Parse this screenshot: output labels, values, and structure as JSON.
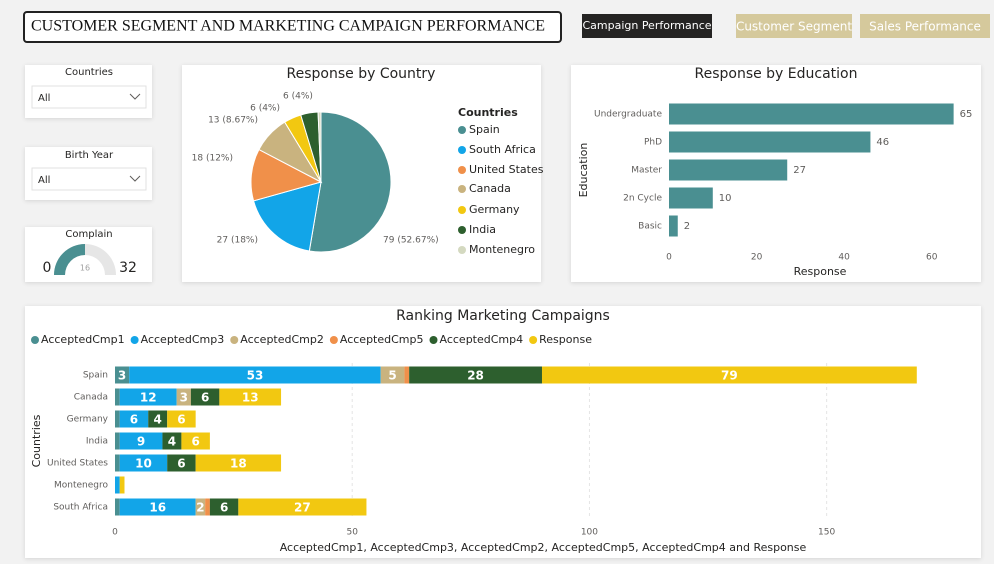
{
  "header": {
    "title": "CUSTOMER SEGMENT AND MARKETING CAMPAIGN PERFORMANCE"
  },
  "tabs": [
    "Campaign Performance",
    "Customer Segment",
    "Sales Performance"
  ],
  "filters": [
    {
      "label": "Countries",
      "value": "All"
    },
    {
      "label": "Birth Year",
      "value": "All"
    }
  ],
  "gauge": {
    "title": "Complain",
    "min": 0,
    "max": 32,
    "value": 16,
    "color": "#4a8f91"
  },
  "chart_data": [
    {
      "type": "pie",
      "title": "Response by Country",
      "legend_title": "Countries",
      "categories": [
        "Spain",
        "South Africa",
        "United States",
        "Canada",
        "Germany",
        "India",
        "Montenegro"
      ],
      "values": [
        79,
        27,
        18,
        13,
        6,
        6,
        1
      ],
      "value_labels": [
        "79 (52.67%)",
        "27 (18%)",
        "18 (12%)",
        "13 (8.67%)",
        "6 (4%)",
        "6 (4%)",
        null
      ],
      "colors": [
        "#4a8f91",
        "#12a5e8",
        "#f0904a",
        "#c9b37f",
        "#f2c811",
        "#2d5f2e",
        "#d4d9c0"
      ]
    },
    {
      "type": "bar",
      "orientation": "horizontal",
      "title": "Response by Education",
      "x_label": "Response",
      "y_label": "Education",
      "categories": [
        "Undergraduate",
        "PhD",
        "Master",
        "2n Cycle",
        "Basic"
      ],
      "values": [
        65,
        46,
        27,
        10,
        2
      ],
      "color": "#4a8f91",
      "xlim": [
        0,
        66
      ],
      "xticks": [
        0,
        20,
        40,
        60
      ]
    },
    {
      "type": "stacked_bar",
      "orientation": "horizontal",
      "title": "Ranking Marketing Campaigns",
      "x_label": "AcceptedCmp1, AcceptedCmp3, AcceptedCmp2, AcceptedCmp5, AcceptedCmp4 and Response",
      "y_label": "Countries",
      "categories": [
        "Spain",
        "Canada",
        "Germany",
        "India",
        "United States",
        "Montenegro",
        "South Africa"
      ],
      "series": [
        {
          "name": "AcceptedCmp1",
          "color": "#4a8f91",
          "values": [
            3,
            1,
            1,
            1,
            1,
            0,
            1
          ]
        },
        {
          "name": "AcceptedCmp3",
          "color": "#12a5e8",
          "values": [
            53,
            12,
            6,
            9,
            10,
            1,
            16
          ]
        },
        {
          "name": "AcceptedCmp2",
          "color": "#c9b37f",
          "values": [
            5,
            3,
            0,
            0,
            0,
            0,
            2
          ]
        },
        {
          "name": "AcceptedCmp5",
          "color": "#f0904a",
          "values": [
            1,
            0,
            0,
            0,
            0,
            0,
            1
          ]
        },
        {
          "name": "AcceptedCmp4",
          "color": "#2d5f2e",
          "values": [
            28,
            6,
            4,
            4,
            6,
            0,
            6
          ]
        },
        {
          "name": "Response",
          "color": "#f2c811",
          "values": [
            79,
            13,
            6,
            6,
            18,
            1,
            27
          ]
        }
      ],
      "xlim": [
        0,
        176
      ],
      "xticks": [
        0,
        50,
        100,
        150
      ],
      "grid": true
    }
  ]
}
